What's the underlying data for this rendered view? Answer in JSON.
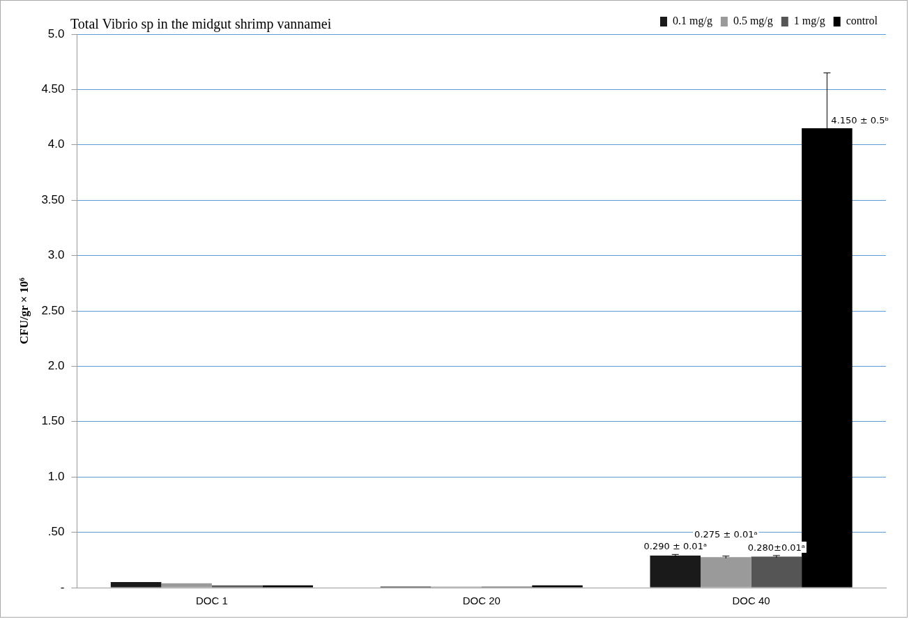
{
  "chart_data": {
    "type": "bar",
    "title": "Total Vibrio sp in the midgut shrimp vannamei",
    "ylabel": "CFU/gr × 10⁶",
    "categories": [
      "DOC 1",
      "DOC 20",
      "DOC 40"
    ],
    "series": [
      {
        "name": "0.1 mg/g",
        "color": "#1a1a1a",
        "values": [
          0.05,
          0.01,
          0.29
        ],
        "errors": [
          null,
          null,
          0.01
        ],
        "value_labels": [
          null,
          null,
          "0.290 ± 0.01ᵃ"
        ]
      },
      {
        "name": "0.5 mg/g",
        "color": "#9a9a9a",
        "values": [
          0.04,
          0.01,
          0.275
        ],
        "errors": [
          null,
          null,
          0.01
        ],
        "value_labels": [
          null,
          null,
          "0.275 ± 0.01ᵃ"
        ]
      },
      {
        "name": "1 mg/g",
        "color": "#555555",
        "values": [
          0.02,
          0.01,
          0.28
        ],
        "errors": [
          null,
          null,
          0.01
        ],
        "value_labels": [
          null,
          null,
          "0.280±0.01ᵃ"
        ]
      },
      {
        "name": "control",
        "color": "#000000",
        "values": [
          0.02,
          0.02,
          4.15
        ],
        "errors": [
          null,
          null,
          0.5
        ],
        "value_labels": [
          null,
          null,
          "4.150 ± 0.5ᵇ"
        ]
      }
    ],
    "ylim": [
      0,
      5
    ],
    "yticks": [
      {
        "value": 0,
        "label": "-"
      },
      {
        "value": 0.5,
        "label": ".50"
      },
      {
        "value": 1,
        "label": "1.0"
      },
      {
        "value": 1.5,
        "label": "1.50"
      },
      {
        "value": 2,
        "label": "2.0"
      },
      {
        "value": 2.5,
        "label": "2.50"
      },
      {
        "value": 3,
        "label": "3.0"
      },
      {
        "value": 3.5,
        "label": "3.50"
      },
      {
        "value": 4,
        "label": "4.0"
      },
      {
        "value": 4.5,
        "label": "4.50"
      },
      {
        "value": 5,
        "label": "5.0"
      }
    ],
    "grid": "y",
    "legend": "top right"
  }
}
